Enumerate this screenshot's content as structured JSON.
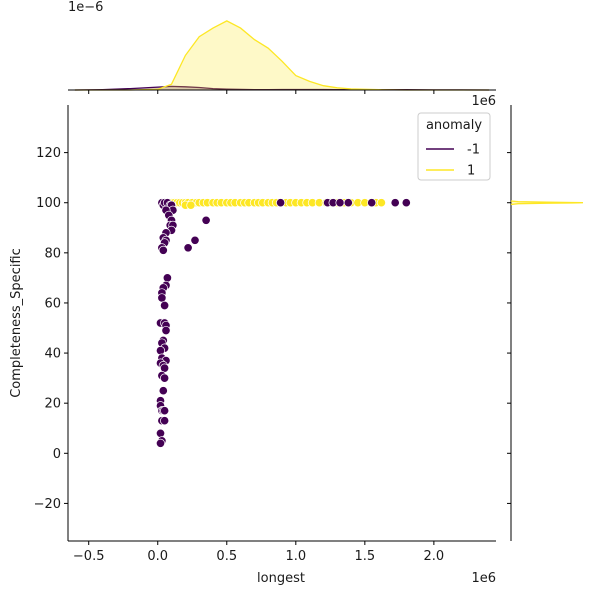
{
  "chart_data": {
    "type": "scatter",
    "xlabel": "longest",
    "ylabel": "Completeness_Specific",
    "x_offset_label": "1e6",
    "y_offset_label": "",
    "top_marginal_offset_label": "1e−6",
    "right_marginal_offset_label": "1e6",
    "xlim": [
      -0.65,
      2.45
    ],
    "ylim": [
      -35,
      139
    ],
    "x_ticks": [
      -0.5,
      0.0,
      0.5,
      1.0,
      1.5,
      2.0
    ],
    "x_tick_labels": [
      "−0.5",
      "0.0",
      "0.5",
      "1.0",
      "1.5",
      "2.0"
    ],
    "y_ticks": [
      -20,
      0,
      20,
      40,
      60,
      80,
      100,
      120
    ],
    "y_tick_labels": [
      "−20",
      "0",
      "20",
      "40",
      "60",
      "80",
      "100",
      "120"
    ],
    "legend": {
      "title": "anomaly",
      "placement": "top-right",
      "entries": [
        {
          "label": "-1",
          "color": "#440154"
        },
        {
          "label": "1",
          "color": "#fde725"
        }
      ]
    },
    "series": [
      {
        "name": "1",
        "color": "#fde725",
        "points": [
          [
            0.1,
            100
          ],
          [
            0.12,
            100
          ],
          [
            0.14,
            100
          ],
          [
            0.16,
            100
          ],
          [
            0.18,
            100
          ],
          [
            0.2,
            100
          ],
          [
            0.22,
            100
          ],
          [
            0.25,
            100
          ],
          [
            0.28,
            100
          ],
          [
            0.3,
            100
          ],
          [
            0.33,
            100
          ],
          [
            0.36,
            100
          ],
          [
            0.4,
            100
          ],
          [
            0.43,
            100
          ],
          [
            0.46,
            100
          ],
          [
            0.5,
            100
          ],
          [
            0.53,
            100
          ],
          [
            0.56,
            100
          ],
          [
            0.6,
            100
          ],
          [
            0.63,
            100
          ],
          [
            0.66,
            100
          ],
          [
            0.7,
            100
          ],
          [
            0.73,
            100
          ],
          [
            0.76,
            100
          ],
          [
            0.8,
            100
          ],
          [
            0.83,
            100
          ],
          [
            0.86,
            100
          ],
          [
            0.93,
            100
          ],
          [
            0.96,
            100
          ],
          [
            1.0,
            100
          ],
          [
            1.04,
            100
          ],
          [
            1.08,
            100
          ],
          [
            1.12,
            100
          ],
          [
            1.17,
            100
          ],
          [
            1.22,
            100
          ],
          [
            1.25,
            100
          ],
          [
            1.3,
            100
          ],
          [
            1.35,
            100
          ],
          [
            1.4,
            100
          ],
          [
            1.45,
            100
          ],
          [
            1.5,
            100
          ],
          [
            1.58,
            100
          ],
          [
            1.62,
            100
          ],
          [
            0.2,
            99
          ],
          [
            0.24,
            99
          ]
        ]
      },
      {
        "name": "-1",
        "color": "#440154",
        "points": [
          [
            0.03,
            100
          ],
          [
            0.04,
            99
          ],
          [
            0.05,
            100
          ],
          [
            0.07,
            100
          ],
          [
            0.09,
            99
          ],
          [
            0.1,
            99
          ],
          [
            0.11,
            97
          ],
          [
            0.06,
            97
          ],
          [
            0.08,
            95
          ],
          [
            0.1,
            93
          ],
          [
            0.35,
            93
          ],
          [
            0.09,
            91
          ],
          [
            0.11,
            91
          ],
          [
            0.1,
            89
          ],
          [
            0.06,
            88
          ],
          [
            0.04,
            86
          ],
          [
            0.06,
            85
          ],
          [
            0.05,
            84
          ],
          [
            0.27,
            85
          ],
          [
            0.03,
            82
          ],
          [
            0.04,
            81
          ],
          [
            0.22,
            82
          ],
          [
            0.07,
            70
          ],
          [
            0.06,
            67
          ],
          [
            0.04,
            66
          ],
          [
            0.03,
            64
          ],
          [
            0.03,
            62
          ],
          [
            0.05,
            59
          ],
          [
            0.02,
            52
          ],
          [
            0.05,
            52
          ],
          [
            0.06,
            51
          ],
          [
            0.06,
            49
          ],
          [
            0.04,
            45
          ],
          [
            0.03,
            44
          ],
          [
            0.05,
            42
          ],
          [
            0.02,
            41
          ],
          [
            0.03,
            38
          ],
          [
            0.06,
            37
          ],
          [
            0.02,
            36
          ],
          [
            0.04,
            35
          ],
          [
            0.05,
            34
          ],
          [
            0.03,
            31
          ],
          [
            0.05,
            30
          ],
          [
            0.04,
            25
          ],
          [
            0.02,
            21
          ],
          [
            0.02,
            19
          ],
          [
            0.03,
            17
          ],
          [
            0.04,
            17
          ],
          [
            0.05,
            17
          ],
          [
            0.03,
            13
          ],
          [
            0.05,
            13
          ],
          [
            0.02,
            8
          ],
          [
            0.03,
            5
          ],
          [
            0.02,
            4
          ],
          [
            0.89,
            100
          ],
          [
            1.23,
            100
          ],
          [
            1.27,
            100
          ],
          [
            1.32,
            100
          ],
          [
            1.38,
            100
          ],
          [
            1.55,
            100
          ],
          [
            1.72,
            100
          ],
          [
            1.8,
            100
          ]
        ]
      }
    ],
    "marginal_top": {
      "type": "kde",
      "x": [
        -0.6,
        -0.4,
        -0.2,
        0.0,
        0.1,
        0.2,
        0.3,
        0.4,
        0.5,
        0.6,
        0.7,
        0.8,
        0.9,
        1.0,
        1.1,
        1.2,
        1.3,
        1.4,
        1.6,
        1.8,
        2.0,
        2.2,
        2.4
      ],
      "series": [
        {
          "name": "1",
          "color": "#fde725",
          "density": [
            0.0,
            0.0,
            0.0,
            0.01,
            0.08,
            0.48,
            0.74,
            0.86,
            0.96,
            0.86,
            0.7,
            0.58,
            0.4,
            0.2,
            0.12,
            0.06,
            0.03,
            0.015,
            0.004,
            0.0,
            0.0,
            0.0,
            0.0
          ]
        },
        {
          "name": "-1",
          "color": "#440154",
          "density": [
            0.0,
            0.005,
            0.02,
            0.04,
            0.05,
            0.045,
            0.035,
            0.02,
            0.012,
            0.008,
            0.006,
            0.006,
            0.007,
            0.007,
            0.007,
            0.007,
            0.006,
            0.006,
            0.005,
            0.004,
            0.002,
            0.001,
            0.0
          ]
        }
      ]
    },
    "marginal_right": {
      "type": "kde",
      "y": [
        99.3,
        99.6,
        99.8,
        99.9,
        100.0,
        100.1,
        100.2,
        100.4,
        100.7
      ],
      "series": [
        {
          "name": "1",
          "color": "#fde725",
          "density": [
            0.0,
            0.1,
            0.5,
            0.85,
            1.0,
            0.85,
            0.5,
            0.1,
            0.0
          ]
        }
      ]
    }
  }
}
